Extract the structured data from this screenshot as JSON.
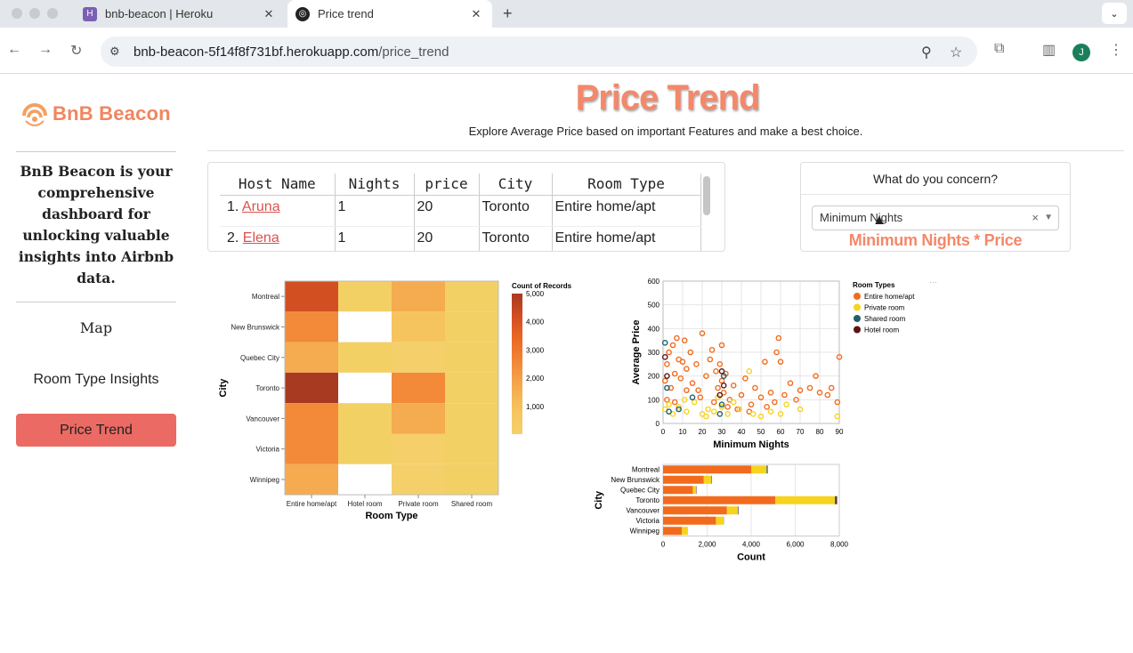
{
  "browser": {
    "tabs": [
      {
        "label": "bnb-beacon | Heroku",
        "active": false,
        "icon": "heroku-icon"
      },
      {
        "label": "Price trend",
        "active": true,
        "icon": "app-icon"
      }
    ],
    "url_host": "bnb-beacon-5f14f8f731bf.herokuapp.com",
    "url_path": "/price_trend",
    "profile_initial": "J"
  },
  "sidebar": {
    "logo_text": "BnB Beacon",
    "intro": "BnB Beacon is your comprehensive dashboard for unlocking valuable insights into Airbnb data.",
    "nav": [
      {
        "label": "Map",
        "active": false
      },
      {
        "label": "Room Type Insights",
        "active": false
      },
      {
        "label": "Price Trend",
        "active": true
      }
    ]
  },
  "header": {
    "title": "Price Trend",
    "subtitle": "Explore Average Price based on important Features and make a best choice."
  },
  "host_table": {
    "columns": [
      "Host Name",
      "Nights",
      "price",
      "City",
      "Room Type"
    ],
    "rows": [
      {
        "index": "1.",
        "host": "Aruna",
        "nights": "1",
        "price": "20",
        "city": "Toronto",
        "room_type": "Entire home/apt"
      },
      {
        "index": "2.",
        "host": "Elena",
        "nights": "1",
        "price": "20",
        "city": "Toronto",
        "room_type": "Entire home/apt"
      }
    ]
  },
  "concern": {
    "title": "What do you concern?",
    "selected": "Minimum Nights",
    "result": "Minimum Nights * Price"
  },
  "colors": {
    "accent": "#f3886a",
    "active_nav": "#eb6a64",
    "entire_home": "#f26b1d",
    "private_room": "#f7d31e",
    "shared_room": "#1f5f6b",
    "hotel_room": "#5a1414"
  },
  "chart_data": [
    {
      "type": "heatmap",
      "xlabel": "Room Type",
      "ylabel": "City",
      "x": [
        "Entire home/apt",
        "Hotel room",
        "Private room",
        "Shared room"
      ],
      "y": [
        "Montreal",
        "New Brunswick",
        "Quebec City",
        "Toronto",
        "Vancouver",
        "Victoria",
        "Winnipeg"
      ],
      "legend_title": "Count of Records",
      "legend_ticks": [
        "5,000",
        "4,000",
        "3,000",
        "2,000",
        "1,000"
      ],
      "values": [
        [
          4200,
          30,
          1300,
          20
        ],
        [
          2200,
          null,
          500,
          10
        ],
        [
          1300,
          20,
          200,
          10
        ],
        [
          5100,
          null,
          2900,
          30
        ],
        [
          3000,
          20,
          1500,
          40
        ],
        [
          3000,
          10,
          300,
          10
        ],
        [
          1300,
          null,
          200,
          10
        ]
      ]
    },
    {
      "type": "scatter",
      "xlabel": "Minimum Nights",
      "ylabel": "Average Price",
      "xlim": [
        0,
        90
      ],
      "ylim": [
        0,
        600
      ],
      "x_ticks": [
        "0",
        "10",
        "20",
        "30",
        "40",
        "50",
        "60",
        "70",
        "80",
        "90"
      ],
      "y_ticks": [
        "0",
        "100",
        "200",
        "300",
        "400",
        "500",
        "600"
      ],
      "legend_title": "Room  Types",
      "series": [
        {
          "name": "Entire home/apt",
          "points": [
            [
              1,
              180
            ],
            [
              2,
              250
            ],
            [
              3,
              300
            ],
            [
              4,
              150
            ],
            [
              5,
              330
            ],
            [
              6,
              210
            ],
            [
              7,
              360
            ],
            [
              8,
              270
            ],
            [
              9,
              190
            ],
            [
              10,
              260
            ],
            [
              11,
              350
            ],
            [
              12,
              230
            ],
            [
              14,
              300
            ],
            [
              15,
              170
            ],
            [
              17,
              250
            ],
            [
              18,
              140
            ],
            [
              20,
              380
            ],
            [
              22,
              200
            ],
            [
              24,
              270
            ],
            [
              25,
              310
            ],
            [
              27,
              220
            ],
            [
              28,
              150
            ],
            [
              29,
              250
            ],
            [
              30,
              180
            ],
            [
              30,
              330
            ],
            [
              31,
              130
            ],
            [
              32,
              210
            ],
            [
              34,
              100
            ],
            [
              36,
              160
            ],
            [
              40,
              120
            ],
            [
              42,
              190
            ],
            [
              45,
              80
            ],
            [
              47,
              150
            ],
            [
              50,
              110
            ],
            [
              52,
              260
            ],
            [
              55,
              130
            ],
            [
              57,
              90
            ],
            [
              58,
              300
            ],
            [
              59,
              360
            ],
            [
              60,
              260
            ],
            [
              62,
              120
            ],
            [
              65,
              170
            ],
            [
              68,
              100
            ],
            [
              70,
              140
            ],
            [
              75,
              150
            ],
            [
              78,
              200
            ],
            [
              80,
              130
            ],
            [
              84,
              120
            ],
            [
              86,
              150
            ],
            [
              89,
              90
            ],
            [
              90,
              280
            ],
            [
              2,
              100
            ],
            [
              6,
              90
            ],
            [
              12,
              140
            ],
            [
              19,
              110
            ],
            [
              26,
              90
            ],
            [
              33,
              70
            ],
            [
              38,
              60
            ],
            [
              44,
              50
            ],
            [
              53,
              70
            ]
          ]
        },
        {
          "name": "Private room",
          "points": [
            [
              1,
              60
            ],
            [
              3,
              80
            ],
            [
              5,
              40
            ],
            [
              8,
              70
            ],
            [
              12,
              50
            ],
            [
              16,
              90
            ],
            [
              20,
              40
            ],
            [
              23,
              60
            ],
            [
              26,
              50
            ],
            [
              30,
              70
            ],
            [
              33,
              40
            ],
            [
              36,
              90
            ],
            [
              39,
              60
            ],
            [
              44,
              220
            ],
            [
              46,
              40
            ],
            [
              50,
              30
            ],
            [
              55,
              50
            ],
            [
              60,
              40
            ],
            [
              63,
              80
            ],
            [
              70,
              60
            ],
            [
              89,
              30
            ],
            [
              11,
              100
            ],
            [
              22,
              30
            ],
            [
              28,
              110
            ]
          ]
        },
        {
          "name": "Shared room",
          "points": [
            [
              1,
              340
            ],
            [
              2,
              150
            ],
            [
              3,
              50
            ],
            [
              8,
              60
            ],
            [
              15,
              110
            ],
            [
              30,
              80
            ],
            [
              31,
              200
            ],
            [
              29,
              40
            ]
          ]
        },
        {
          "name": "Hotel room",
          "points": [
            [
              1,
              280
            ],
            [
              2,
              200
            ],
            [
              30,
              220
            ],
            [
              31,
              160
            ],
            [
              29,
              120
            ]
          ]
        }
      ]
    },
    {
      "type": "bar",
      "stacked": true,
      "orientation": "horizontal",
      "xlabel": "Count",
      "ylabel": "City",
      "xlim": [
        0,
        8000
      ],
      "x_ticks": [
        "0",
        "2,000",
        "4,000",
        "6,000",
        "8,000"
      ],
      "categories": [
        "Montreal",
        "New Brunswick",
        "Quebec City",
        "Toronto",
        "Vancouver",
        "Victoria",
        "Winnipeg"
      ],
      "series": [
        {
          "name": "Entire home/apt",
          "values": [
            4000,
            1850,
            1350,
            5100,
            2900,
            2400,
            850
          ]
        },
        {
          "name": "Private room",
          "values": [
            700,
            350,
            150,
            2700,
            500,
            350,
            250
          ]
        },
        {
          "name": "Shared room",
          "values": [
            30,
            20,
            10,
            60,
            20,
            10,
            10
          ]
        },
        {
          "name": "Hotel room",
          "values": [
            20,
            0,
            10,
            40,
            10,
            0,
            0
          ]
        }
      ]
    }
  ]
}
